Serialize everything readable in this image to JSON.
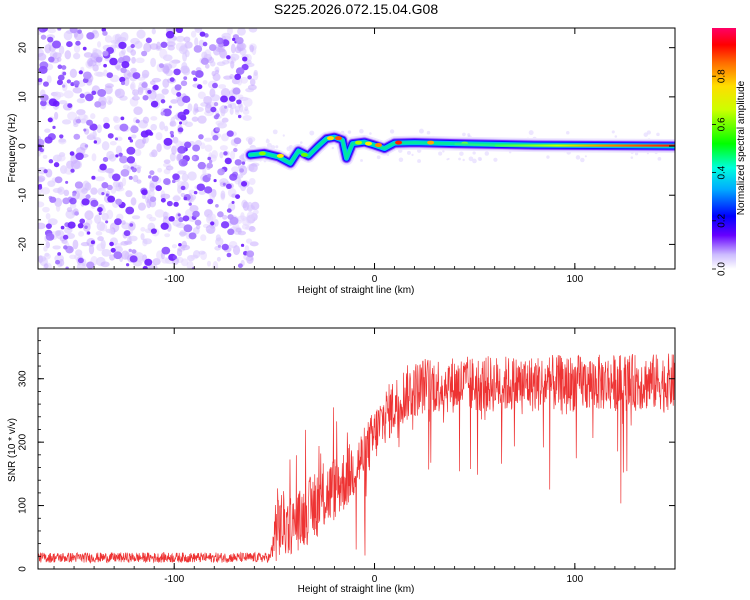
{
  "title": "S225.2026.072.15.04.G08",
  "chart_data": [
    {
      "type": "heatmap",
      "xlabel": "Height of straight line (km)",
      "ylabel": "Frequency (Hz)",
      "xlim": [
        -168,
        150
      ],
      "ylim": [
        -25,
        24
      ],
      "x_ticks": [
        -100,
        0,
        100
      ],
      "y_ticks": [
        -20,
        -10,
        0,
        10,
        20
      ],
      "colorbar": {
        "label": "Normalized spectral amplitude",
        "range": [
          0.0,
          1.0
        ],
        "ticks": [
          0.0,
          0.2,
          0.4,
          0.6,
          0.8
        ]
      },
      "noise_region_x": [
        -168,
        -62
      ],
      "ridge": [
        {
          "x": -62,
          "y": -1.8
        },
        {
          "x": -55,
          "y": -1.5
        },
        {
          "x": -48,
          "y": -2.2
        },
        {
          "x": -42,
          "y": -3.5
        },
        {
          "x": -38,
          "y": -1.0
        },
        {
          "x": -33,
          "y": -2.0
        },
        {
          "x": -28,
          "y": 0.0
        },
        {
          "x": -24,
          "y": 1.5
        },
        {
          "x": -20,
          "y": 1.8
        },
        {
          "x": -16,
          "y": 1.2
        },
        {
          "x": -14,
          "y": -2.5
        },
        {
          "x": -11,
          "y": 0.5
        },
        {
          "x": -5,
          "y": 0.8
        },
        {
          "x": 0,
          "y": 0.2
        },
        {
          "x": 5,
          "y": -0.5
        },
        {
          "x": 10,
          "y": 0.6
        },
        {
          "x": 20,
          "y": 0.7
        },
        {
          "x": 40,
          "y": 0.5
        },
        {
          "x": 80,
          "y": 0.2
        },
        {
          "x": 150,
          "y": 0.0
        }
      ]
    },
    {
      "type": "line",
      "xlabel": "Height of straight line (km)",
      "ylabel": "SNR (10 * v/v)",
      "xlim": [
        -168,
        150
      ],
      "ylim": [
        0,
        380
      ],
      "x_ticks": [
        -100,
        0,
        100
      ],
      "y_ticks": [
        0,
        100,
        200,
        300
      ],
      "color": "#ee3333",
      "envelope": [
        {
          "x": -168,
          "mean": 18,
          "spread": 8
        },
        {
          "x": -52,
          "mean": 18,
          "spread": 8
        },
        {
          "x": -49,
          "mean": 70,
          "spread": 60
        },
        {
          "x": -40,
          "mean": 70,
          "spread": 45
        },
        {
          "x": -30,
          "mean": 100,
          "spread": 55
        },
        {
          "x": -15,
          "mean": 140,
          "spread": 50
        },
        {
          "x": -5,
          "mean": 180,
          "spread": 45
        },
        {
          "x": 5,
          "mean": 240,
          "spread": 45
        },
        {
          "x": 15,
          "mean": 275,
          "spread": 45
        },
        {
          "x": 25,
          "mean": 290,
          "spread": 45
        },
        {
          "x": 150,
          "mean": 295,
          "spread": 45
        }
      ]
    }
  ]
}
